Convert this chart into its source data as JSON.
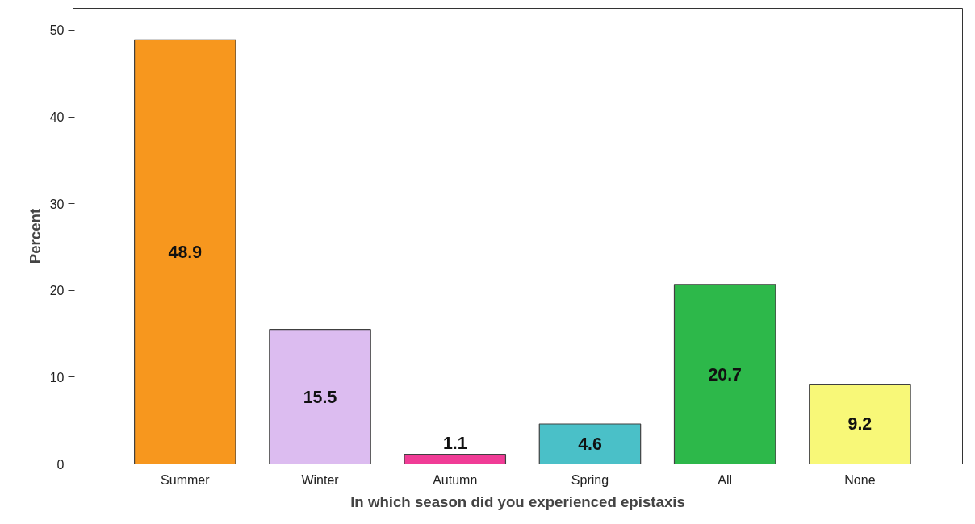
{
  "chart_data": {
    "type": "bar",
    "xlabel": "In which season did you experienced epistaxis",
    "ylabel": "Percent",
    "categories": [
      "Summer",
      "Winter",
      "Autumn",
      "Spring",
      "All",
      "None"
    ],
    "values": [
      48.9,
      15.5,
      1.1,
      4.6,
      20.7,
      9.2
    ],
    "colors": [
      "#f7971e",
      "#dcbcf0",
      "#f03c96",
      "#4ac0c8",
      "#2db84a",
      "#f8f878"
    ],
    "ylim": [
      0,
      52.5
    ],
    "yticks": [
      0,
      10,
      20,
      30,
      40,
      50
    ],
    "data_labels": true,
    "grid": false
  }
}
